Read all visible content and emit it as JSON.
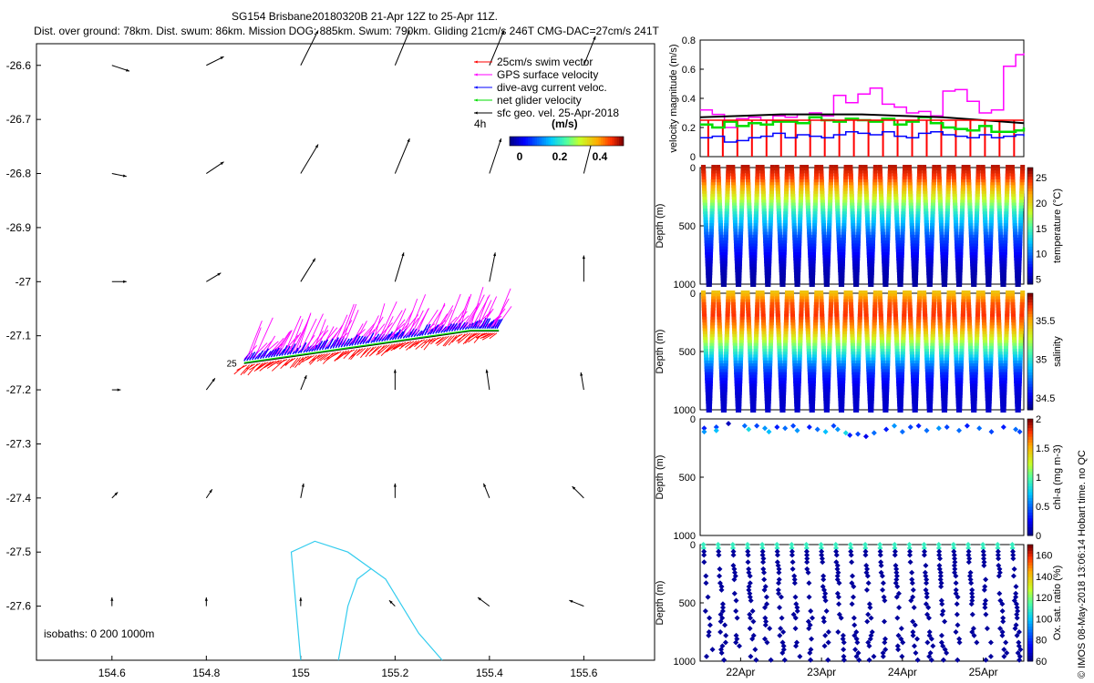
{
  "header": {
    "title_line1": "SG154 Brisbane20180320B 21-Apr 12Z to 25-Apr 11Z.",
    "title_line2": "Dist. over ground: 78km. Dist. swum: 86km. Mission DOG: 885km. Swum: 790km. Gliding 21cm/s 246T CMG-DAC=27cm/s 241T"
  },
  "side_caption": "© IMOS 08-May-2018 13:06:14 Hobart time. no QC",
  "colors": {
    "swim": "#ff0000",
    "gps": "#ff00ff",
    "dac": "#0000ff",
    "net": "#00dd00",
    "geo": "#000000",
    "isobath": "#33ccee"
  },
  "chart_data": [
    {
      "type": "scatter",
      "panel": "map",
      "x_ticks": [
        "154.6",
        "154.8",
        "155",
        "155.2",
        "155.4",
        "155.6"
      ],
      "y_ticks": [
        "-26.6",
        "-26.7",
        "-26.8",
        "-26.9",
        "-27",
        "-27.1",
        "-27.2",
        "-27.3",
        "-27.4",
        "-27.5",
        "-27.6"
      ],
      "xlim": [
        154.44,
        155.75
      ],
      "ylim": [
        -27.7,
        -26.56
      ],
      "legend": [
        {
          "label": "25cm/s swim vector",
          "color": "#ff0000"
        },
        {
          "label": "GPS surface velocity",
          "color": "#ff00ff"
        },
        {
          "label": "dive-avg current veloc.",
          "color": "#0000ff"
        },
        {
          "label": "net glider velocity",
          "color": "#00dd00"
        },
        {
          "label": "sfc geo. vel. 25-Apr-2018",
          "color": "#000000"
        }
      ],
      "legend_note": "4h",
      "colorbar_label": "(m/s)",
      "colorbar_ticks": [
        "0",
        "0.2",
        "0.4"
      ],
      "isobaths_label": "isobaths: 0   200   1000m",
      "track_label": "25",
      "track": [
        [
          154.88,
          -27.15
        ],
        [
          154.96,
          -27.14
        ],
        [
          155.04,
          -27.13
        ],
        [
          155.12,
          -27.12
        ],
        [
          155.2,
          -27.11
        ],
        [
          155.28,
          -27.1
        ],
        [
          155.36,
          -27.09
        ],
        [
          155.42,
          -27.09
        ]
      ],
      "geo_vectors": [
        {
          "lon": 154.6,
          "lat": -26.6,
          "u": 0.06,
          "v": -0.02
        },
        {
          "lon": 154.8,
          "lat": -26.6,
          "u": 0.06,
          "v": 0.03
        },
        {
          "lon": 155.0,
          "lat": -26.6,
          "u": 0.06,
          "v": 0.12
        },
        {
          "lon": 155.2,
          "lat": -26.6,
          "u": 0.05,
          "v": 0.12
        },
        {
          "lon": 155.4,
          "lat": -26.6,
          "u": 0.05,
          "v": 0.12
        },
        {
          "lon": 155.6,
          "lat": -26.6,
          "u": 0.04,
          "v": 0.1
        },
        {
          "lon": 154.6,
          "lat": -26.8,
          "u": 0.05,
          "v": -0.01
        },
        {
          "lon": 154.8,
          "lat": -26.8,
          "u": 0.06,
          "v": 0.04
        },
        {
          "lon": 155.0,
          "lat": -26.8,
          "u": 0.06,
          "v": 0.1
        },
        {
          "lon": 155.2,
          "lat": -26.8,
          "u": 0.05,
          "v": 0.12
        },
        {
          "lon": 155.4,
          "lat": -26.8,
          "u": 0.04,
          "v": 0.12
        },
        {
          "lon": 155.6,
          "lat": -26.8,
          "u": 0.03,
          "v": 0.12
        },
        {
          "lon": 154.6,
          "lat": -27.0,
          "u": 0.05,
          "v": 0.0
        },
        {
          "lon": 154.8,
          "lat": -27.0,
          "u": 0.05,
          "v": 0.03
        },
        {
          "lon": 155.0,
          "lat": -27.0,
          "u": 0.05,
          "v": 0.08
        },
        {
          "lon": 155.2,
          "lat": -27.0,
          "u": 0.03,
          "v": 0.1
        },
        {
          "lon": 155.4,
          "lat": -27.0,
          "u": 0.02,
          "v": 0.1
        },
        {
          "lon": 155.6,
          "lat": -27.0,
          "u": 0.0,
          "v": 0.09
        },
        {
          "lon": 154.6,
          "lat": -27.2,
          "u": 0.03,
          "v": 0.0
        },
        {
          "lon": 154.8,
          "lat": -27.2,
          "u": 0.03,
          "v": 0.04
        },
        {
          "lon": 155.0,
          "lat": -27.2,
          "u": 0.02,
          "v": 0.05
        },
        {
          "lon": 155.2,
          "lat": -27.2,
          "u": 0.0,
          "v": 0.07
        },
        {
          "lon": 155.4,
          "lat": -27.2,
          "u": -0.01,
          "v": 0.07
        },
        {
          "lon": 155.6,
          "lat": -27.2,
          "u": -0.01,
          "v": 0.06
        },
        {
          "lon": 154.6,
          "lat": -27.4,
          "u": 0.02,
          "v": 0.02
        },
        {
          "lon": 154.8,
          "lat": -27.4,
          "u": 0.02,
          "v": 0.03
        },
        {
          "lon": 155.0,
          "lat": -27.4,
          "u": 0.01,
          "v": 0.05
        },
        {
          "lon": 155.2,
          "lat": -27.4,
          "u": 0.0,
          "v": 0.05
        },
        {
          "lon": 155.4,
          "lat": -27.4,
          "u": -0.02,
          "v": 0.05
        },
        {
          "lon": 155.6,
          "lat": -27.4,
          "u": -0.04,
          "v": 0.04
        },
        {
          "lon": 154.6,
          "lat": -27.6,
          "u": 0.0,
          "v": 0.03
        },
        {
          "lon": 154.8,
          "lat": -27.6,
          "u": 0.0,
          "v": 0.03
        },
        {
          "lon": 155.0,
          "lat": -27.6,
          "u": 0.0,
          "v": 0.03
        },
        {
          "lon": 155.2,
          "lat": -27.6,
          "u": -0.02,
          "v": 0.02
        },
        {
          "lon": 155.4,
          "lat": -27.6,
          "u": -0.04,
          "v": 0.03
        },
        {
          "lon": 155.6,
          "lat": -27.6,
          "u": -0.05,
          "v": 0.02
        }
      ],
      "isobath_coast": [
        [
          155.0,
          -27.7
        ],
        [
          154.99,
          -27.6
        ],
        [
          154.98,
          -27.5
        ],
        [
          155.03,
          -27.48
        ],
        [
          155.1,
          -27.5
        ],
        [
          155.18,
          -27.55
        ],
        [
          155.25,
          -27.65
        ],
        [
          155.3,
          -27.7
        ]
      ],
      "isobath_inner": [
        [
          155.08,
          -27.7
        ],
        [
          155.1,
          -27.6
        ],
        [
          155.12,
          -27.55
        ],
        [
          155.15,
          -27.53
        ]
      ]
    },
    {
      "type": "line",
      "panel": "velocity",
      "ylabel": "velocity magnitude (m/s)",
      "ylim": [
        0,
        0.8
      ],
      "y_ticks": [
        "0",
        "0.2",
        "0.4",
        "0.6",
        "0.8"
      ],
      "xlim": [
        0,
        4
      ],
      "series": [
        {
          "key": "gps",
          "color": "#ff00ff",
          "x": [
            0,
            0.15,
            0.3,
            0.45,
            0.6,
            0.75,
            0.9,
            1.05,
            1.2,
            1.35,
            1.5,
            1.65,
            1.8,
            1.95,
            2.1,
            2.25,
            2.4,
            2.55,
            2.7,
            2.85,
            3.0,
            3.15,
            3.3,
            3.45,
            3.6,
            3.75,
            3.9,
            4.0
          ],
          "values": [
            0.32,
            0.29,
            0.2,
            0.26,
            0.27,
            0.25,
            0.28,
            0.27,
            0.29,
            0.3,
            0.28,
            0.42,
            0.37,
            0.43,
            0.47,
            0.36,
            0.34,
            0.3,
            0.31,
            0.28,
            0.45,
            0.46,
            0.38,
            0.3,
            0.32,
            0.62,
            0.7,
            0.71
          ]
        },
        {
          "key": "net",
          "color": "#00dd00",
          "x": [
            0,
            0.15,
            0.3,
            0.45,
            0.6,
            0.75,
            0.9,
            1.05,
            1.2,
            1.35,
            1.5,
            1.65,
            1.8,
            1.95,
            2.1,
            2.25,
            2.4,
            2.55,
            2.7,
            2.85,
            3.0,
            3.15,
            3.3,
            3.45,
            3.6,
            3.75,
            3.9,
            4.0
          ],
          "values": [
            0.22,
            0.2,
            0.24,
            0.21,
            0.23,
            0.22,
            0.24,
            0.24,
            0.23,
            0.27,
            0.25,
            0.24,
            0.26,
            0.25,
            0.24,
            0.26,
            0.22,
            0.24,
            0.27,
            0.23,
            0.2,
            0.19,
            0.18,
            0.21,
            0.17,
            0.17,
            0.18,
            0.2
          ]
        },
        {
          "key": "dac",
          "color": "#0000ff",
          "x": [
            0,
            0.15,
            0.3,
            0.45,
            0.6,
            0.75,
            0.9,
            1.05,
            1.2,
            1.35,
            1.5,
            1.65,
            1.8,
            1.95,
            2.1,
            2.25,
            2.4,
            2.55,
            2.7,
            2.85,
            3.0,
            3.15,
            3.3,
            3.45,
            3.6,
            3.75,
            3.9,
            4.0
          ],
          "values": [
            0.13,
            0.14,
            0.1,
            0.11,
            0.13,
            0.14,
            0.16,
            0.13,
            0.15,
            0.14,
            0.13,
            0.15,
            0.17,
            0.16,
            0.15,
            0.17,
            0.14,
            0.13,
            0.16,
            0.17,
            0.15,
            0.14,
            0.13,
            0.15,
            0.13,
            0.14,
            0.15,
            0.14
          ]
        },
        {
          "key": "geo",
          "color": "#000000",
          "x": [
            0,
            0.5,
            1.0,
            1.5,
            2.0,
            2.5,
            3.0,
            3.5,
            4.0
          ],
          "values": [
            0.27,
            0.28,
            0.29,
            0.29,
            0.29,
            0.28,
            0.27,
            0.25,
            0.23
          ]
        },
        {
          "key": "swim",
          "color": "#ff0000",
          "x": [
            0,
            4
          ],
          "values": [
            0.25,
            0.25
          ]
        }
      ]
    },
    {
      "type": "heatmap",
      "panel": "temperature",
      "ylabel": "Depth (m)",
      "colorbar_label": "temperature (°C)",
      "ylim": [
        1000,
        0
      ],
      "y_ticks": [
        "0",
        "500",
        "1000"
      ],
      "colorbar_ticks": [
        "5",
        "10",
        "15",
        "20",
        "25"
      ],
      "clim": [
        4,
        27
      ],
      "profile_count": 22,
      "profile": [
        [
          0,
          26
        ],
        [
          100,
          24.5
        ],
        [
          200,
          21
        ],
        [
          300,
          17.5
        ],
        [
          400,
          14
        ],
        [
          500,
          11.5
        ],
        [
          600,
          9
        ],
        [
          700,
          7.5
        ],
        [
          800,
          6
        ],
        [
          900,
          5
        ],
        [
          1000,
          4.5
        ]
      ]
    },
    {
      "type": "heatmap",
      "panel": "salinity",
      "ylabel": "Depth (m)",
      "colorbar_label": "salinity",
      "ylim": [
        1000,
        0
      ],
      "y_ticks": [
        "0",
        "500",
        "1000"
      ],
      "colorbar_ticks": [
        "34.5",
        "35",
        "35.5"
      ],
      "clim": [
        34.35,
        35.85
      ],
      "profile_count": 22,
      "profile": [
        [
          0,
          35.45
        ],
        [
          100,
          35.65
        ],
        [
          200,
          35.7
        ],
        [
          300,
          35.55
        ],
        [
          400,
          35.3
        ],
        [
          500,
          35.05
        ],
        [
          600,
          34.8
        ],
        [
          700,
          34.6
        ],
        [
          800,
          34.5
        ],
        [
          900,
          34.45
        ],
        [
          1000,
          34.45
        ]
      ]
    },
    {
      "type": "scatter",
      "panel": "chl",
      "ylabel": "Depth (m)",
      "colorbar_label": "chl-a (mg m-3)",
      "ylim": [
        1000,
        0
      ],
      "y_ticks": [
        "0",
        "500",
        "1000"
      ],
      "colorbar_ticks": [
        "0",
        "0.5",
        "1",
        "1.5",
        "2"
      ],
      "clim": [
        0,
        2
      ],
      "points": [
        [
          0.05,
          80,
          0.3
        ],
        [
          0.05,
          110,
          0.6
        ],
        [
          0.2,
          70,
          0.4
        ],
        [
          0.2,
          100,
          0.7
        ],
        [
          0.35,
          40,
          0.1
        ],
        [
          0.55,
          60,
          0.5
        ],
        [
          0.6,
          90,
          0.8
        ],
        [
          0.7,
          60,
          0.4
        ],
        [
          0.8,
          80,
          0.6
        ],
        [
          0.85,
          110,
          0.7
        ],
        [
          0.95,
          70,
          0.3
        ],
        [
          1.05,
          80,
          0.5
        ],
        [
          1.15,
          60,
          0.4
        ],
        [
          1.2,
          100,
          0.6
        ],
        [
          1.35,
          70,
          0.3
        ],
        [
          1.45,
          90,
          0.5
        ],
        [
          1.55,
          110,
          0.7
        ],
        [
          1.65,
          60,
          0.4
        ],
        [
          1.7,
          90,
          0.6
        ],
        [
          1.8,
          120,
          0.8
        ],
        [
          1.85,
          140,
          0.3
        ],
        [
          1.95,
          130,
          0.4
        ],
        [
          2.05,
          150,
          0.2
        ],
        [
          2.15,
          120,
          0.5
        ],
        [
          2.3,
          90,
          0.3
        ],
        [
          2.4,
          60,
          0.6
        ],
        [
          2.5,
          110,
          0.5
        ],
        [
          2.6,
          70,
          0.4
        ],
        [
          2.7,
          60,
          0.3
        ],
        [
          2.8,
          100,
          0.5
        ],
        [
          2.95,
          80,
          0.6
        ],
        [
          3.05,
          70,
          0.4
        ],
        [
          3.2,
          100,
          0.5
        ],
        [
          3.3,
          60,
          0.3
        ],
        [
          3.45,
          80,
          0.5
        ],
        [
          3.6,
          110,
          0.4
        ],
        [
          3.75,
          70,
          0.3
        ],
        [
          3.9,
          90,
          0.5
        ],
        [
          3.95,
          110,
          0.4
        ]
      ]
    },
    {
      "type": "scatter",
      "panel": "oxygen",
      "ylabel": "Depth (m)",
      "colorbar_label": "Ox. sat. ratio (%)",
      "ylim": [
        1000,
        0
      ],
      "y_ticks": [
        "0",
        "500",
        "1000"
      ],
      "colorbar_ticks": [
        "60",
        "80",
        "100",
        "120",
        "140",
        "160"
      ],
      "clim": [
        60,
        170
      ],
      "x_ticks": [
        "22Apr",
        "23Apr",
        "24Apr",
        "25Apr"
      ],
      "x_tick_values": [
        0.5,
        1.5,
        2.5,
        3.5
      ],
      "xlim": [
        0,
        4
      ],
      "profile_count": 22,
      "surface_value": 110,
      "deep_value": 62
    }
  ]
}
